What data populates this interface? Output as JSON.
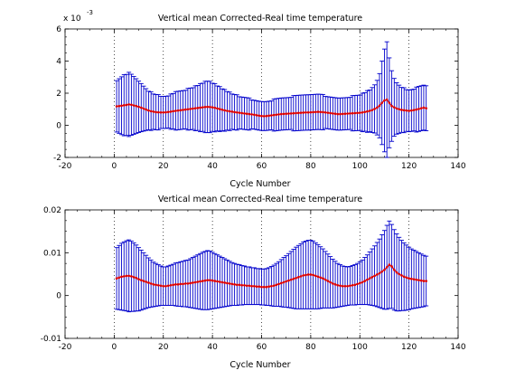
{
  "chart_data": [
    {
      "type": "line",
      "title": "Vertical mean Corrected-Real time temperature",
      "xlabel": "Cycle Number",
      "ylabel": "",
      "xlim": [
        -20,
        140
      ],
      "ylim": [
        -0.002,
        0.006
      ],
      "x_ticks": [
        -20,
        0,
        20,
        40,
        60,
        80,
        100,
        120,
        140
      ],
      "y_ticks": [
        -2,
        0,
        2,
        4,
        6
      ],
      "y_multiplier": "x 10",
      "y_multiplier_exp": "-3",
      "grid": "x-dotted",
      "series": [
        {
          "style": "errorbar",
          "color": "#0000cc",
          "mean_color": "#dd0000",
          "x": [
            1,
            2,
            3,
            4,
            5,
            6,
            7,
            8,
            9,
            10,
            11,
            12,
            13,
            14,
            15,
            16,
            17,
            18,
            19,
            20,
            21,
            22,
            23,
            24,
            25,
            26,
            27,
            28,
            29,
            30,
            31,
            32,
            33,
            34,
            35,
            36,
            37,
            38,
            39,
            40,
            41,
            42,
            43,
            44,
            45,
            46,
            47,
            48,
            49,
            50,
            51,
            52,
            53,
            54,
            55,
            56,
            57,
            58,
            59,
            60,
            61,
            62,
            63,
            64,
            65,
            66,
            67,
            68,
            69,
            70,
            71,
            72,
            73,
            74,
            75,
            76,
            77,
            78,
            79,
            80,
            81,
            82,
            83,
            84,
            85,
            86,
            87,
            88,
            89,
            90,
            91,
            92,
            93,
            94,
            95,
            96,
            97,
            98,
            99,
            100,
            101,
            102,
            103,
            104,
            105,
            106,
            107,
            108,
            109,
            110,
            111,
            112,
            113,
            114,
            115,
            116,
            117,
            118,
            119,
            120,
            121,
            122,
            123,
            124,
            125,
            126,
            127
          ],
          "mean": [
            0.00118,
            0.0012,
            0.00122,
            0.00125,
            0.00127,
            0.0013,
            0.00128,
            0.00124,
            0.0012,
            0.00115,
            0.0011,
            0.00104,
            0.00098,
            0.00092,
            0.00088,
            0.00085,
            0.00082,
            0.00081,
            0.0008,
            0.0008,
            0.00081,
            0.00083,
            0.00085,
            0.00088,
            0.0009,
            0.00092,
            0.00094,
            0.00096,
            0.00098,
            0.001,
            0.00102,
            0.00104,
            0.00106,
            0.00108,
            0.0011,
            0.00112,
            0.00114,
            0.00115,
            0.00114,
            0.00112,
            0.00109,
            0.00105,
            0.00101,
            0.00097,
            0.00093,
            0.0009,
            0.00087,
            0.00085,
            0.00082,
            0.0008,
            0.00078,
            0.00076,
            0.00074,
            0.00072,
            0.0007,
            0.00068,
            0.00066,
            0.00063,
            0.0006,
            0.00058,
            0.00057,
            0.00058,
            0.0006,
            0.00062,
            0.00064,
            0.00066,
            0.00068,
            0.0007,
            0.00071,
            0.00072,
            0.00073,
            0.00074,
            0.00075,
            0.00076,
            0.00077,
            0.00078,
            0.00079,
            0.0008,
            0.0008,
            0.00081,
            0.00082,
            0.00083,
            0.00084,
            0.00083,
            0.00082,
            0.0008,
            0.00078,
            0.00076,
            0.00074,
            0.00072,
            0.0007,
            0.0007,
            0.00071,
            0.00072,
            0.00073,
            0.00074,
            0.00075,
            0.00076,
            0.00077,
            0.00078,
            0.0008,
            0.00083,
            0.00086,
            0.0009,
            0.00095,
            0.00102,
            0.0011,
            0.00122,
            0.0014,
            0.00155,
            0.0016,
            0.0014,
            0.0012,
            0.00112,
            0.00105,
            0.001,
            0.00096,
            0.00094,
            0.00092,
            0.0009,
            0.00092,
            0.00095,
            0.00098,
            0.00102,
            0.00106,
            0.0011,
            0.00106
          ],
          "spread": [
            0.0016,
            0.0017,
            0.0018,
            0.0019,
            0.0019,
            0.002,
            0.0019,
            0.0018,
            0.0017,
            0.0016,
            0.0015,
            0.0014,
            0.0013,
            0.0012,
            0.0012,
            0.0011,
            0.0011,
            0.0011,
            0.001,
            0.001,
            0.001,
            0.001,
            0.0011,
            0.0011,
            0.0012,
            0.0012,
            0.0012,
            0.0012,
            0.0012,
            0.0013,
            0.0013,
            0.0013,
            0.0014,
            0.0014,
            0.0015,
            0.0015,
            0.0016,
            0.0016,
            0.0016,
            0.0015,
            0.0015,
            0.0014,
            0.0014,
            0.0013,
            0.0013,
            0.0012,
            0.0012,
            0.0011,
            0.0011,
            0.0011,
            0.001,
            0.001,
            0.001,
            0.001,
            0.001,
            0.0009,
            0.0009,
            0.0009,
            0.0009,
            0.0009,
            0.0009,
            0.0009,
            0.0009,
            0.0009,
            0.001,
            0.001,
            0.001,
            0.001,
            0.001,
            0.001,
            0.001,
            0.001,
            0.0011,
            0.0011,
            0.0011,
            0.0011,
            0.0011,
            0.0011,
            0.0011,
            0.0011,
            0.0011,
            0.0011,
            0.0011,
            0.0011,
            0.0011,
            0.001,
            0.001,
            0.001,
            0.001,
            0.001,
            0.001,
            0.001,
            0.001,
            0.001,
            0.001,
            0.001,
            0.0011,
            0.0011,
            0.0011,
            0.0011,
            0.0012,
            0.0012,
            0.0013,
            0.0013,
            0.0014,
            0.0015,
            0.0017,
            0.002,
            0.0026,
            0.0032,
            0.0036,
            0.0028,
            0.0022,
            0.0018,
            0.0016,
            0.0015,
            0.0014,
            0.0014,
            0.0013,
            0.0013,
            0.0013,
            0.0013,
            0.0014,
            0.0014,
            0.0014,
            0.0014,
            0.0014
          ]
        }
      ]
    },
    {
      "type": "line",
      "title": "Vertical mean Corrected-Real time temperature",
      "xlabel": "Cycle Number",
      "ylabel": "",
      "xlim": [
        -20,
        140
      ],
      "ylim": [
        -0.01,
        0.02
      ],
      "x_ticks": [
        -20,
        0,
        20,
        40,
        60,
        80,
        100,
        120,
        140
      ],
      "y_ticks": [
        -0.01,
        0,
        0.01,
        0.02
      ],
      "y_tick_labels": [
        "-0.01",
        "0",
        "0.01",
        "0.02"
      ],
      "grid": "x-dotted",
      "series": [
        {
          "style": "errorbar",
          "color": "#0000cc",
          "mean_color": "#dd0000",
          "x": [
            1,
            2,
            3,
            4,
            5,
            6,
            7,
            8,
            9,
            10,
            11,
            12,
            13,
            14,
            15,
            16,
            17,
            18,
            19,
            20,
            21,
            22,
            23,
            24,
            25,
            26,
            27,
            28,
            29,
            30,
            31,
            32,
            33,
            34,
            35,
            36,
            37,
            38,
            39,
            40,
            41,
            42,
            43,
            44,
            45,
            46,
            47,
            48,
            49,
            50,
            51,
            52,
            53,
            54,
            55,
            56,
            57,
            58,
            59,
            60,
            61,
            62,
            63,
            64,
            65,
            66,
            67,
            68,
            69,
            70,
            71,
            72,
            73,
            74,
            75,
            76,
            77,
            78,
            79,
            80,
            81,
            82,
            83,
            84,
            85,
            86,
            87,
            88,
            89,
            90,
            91,
            92,
            93,
            94,
            95,
            96,
            97,
            98,
            99,
            100,
            101,
            102,
            103,
            104,
            105,
            106,
            107,
            108,
            109,
            110,
            111,
            112,
            113,
            114,
            115,
            116,
            117,
            118,
            119,
            120,
            121,
            122,
            123,
            124,
            125,
            126,
            127
          ],
          "mean": [
            0.004,
            0.0042,
            0.0044,
            0.0045,
            0.0046,
            0.0046,
            0.0045,
            0.0043,
            0.0041,
            0.0038,
            0.0036,
            0.0034,
            0.0032,
            0.003,
            0.0028,
            0.0026,
            0.0025,
            0.0024,
            0.0023,
            0.0022,
            0.0022,
            0.0023,
            0.0024,
            0.0025,
            0.0026,
            0.0026,
            0.0027,
            0.0027,
            0.0028,
            0.0028,
            0.0029,
            0.003,
            0.0031,
            0.0032,
            0.0033,
            0.0034,
            0.0035,
            0.0036,
            0.0036,
            0.0035,
            0.0034,
            0.0033,
            0.0032,
            0.0031,
            0.003,
            0.0029,
            0.0028,
            0.0027,
            0.0026,
            0.0025,
            0.0025,
            0.0024,
            0.0024,
            0.0023,
            0.0023,
            0.0022,
            0.0022,
            0.0021,
            0.0021,
            0.002,
            0.002,
            0.002,
            0.0021,
            0.0022,
            0.0023,
            0.0025,
            0.0027,
            0.0029,
            0.0031,
            0.0033,
            0.0035,
            0.0037,
            0.0039,
            0.0041,
            0.0043,
            0.0045,
            0.0047,
            0.0048,
            0.0049,
            0.0049,
            0.0048,
            0.0046,
            0.0044,
            0.0042,
            0.004,
            0.0037,
            0.0034,
            0.0031,
            0.0028,
            0.0026,
            0.0024,
            0.0023,
            0.0022,
            0.0022,
            0.0022,
            0.0023,
            0.0024,
            0.0025,
            0.0027,
            0.0029,
            0.0031,
            0.0034,
            0.0037,
            0.004,
            0.0043,
            0.0046,
            0.0049,
            0.0052,
            0.0056,
            0.006,
            0.0066,
            0.0072,
            0.0068,
            0.006,
            0.0054,
            0.005,
            0.0047,
            0.0044,
            0.0042,
            0.004,
            0.0039,
            0.0038,
            0.0037,
            0.0036,
            0.0035,
            0.0034,
            0.0034
          ],
          "spread": [
            0.0072,
            0.0075,
            0.0078,
            0.008,
            0.0082,
            0.0084,
            0.0082,
            0.008,
            0.0077,
            0.0074,
            0.007,
            0.0066,
            0.0062,
            0.0058,
            0.0055,
            0.0052,
            0.005,
            0.0048,
            0.0046,
            0.0045,
            0.0045,
            0.0046,
            0.0047,
            0.0048,
            0.005,
            0.0051,
            0.0052,
            0.0053,
            0.0054,
            0.0055,
            0.0057,
            0.0059,
            0.0061,
            0.0063,
            0.0065,
            0.0067,
            0.0068,
            0.0069,
            0.0068,
            0.0066,
            0.0064,
            0.0062,
            0.006,
            0.0058,
            0.0056,
            0.0054,
            0.0052,
            0.005,
            0.0049,
            0.0048,
            0.0047,
            0.0046,
            0.0045,
            0.0044,
            0.0044,
            0.0043,
            0.0043,
            0.0042,
            0.0042,
            0.0042,
            0.0042,
            0.0043,
            0.0044,
            0.0046,
            0.0048,
            0.005,
            0.0052,
            0.0055,
            0.0058,
            0.006,
            0.0063,
            0.0066,
            0.0069,
            0.0072,
            0.0074,
            0.0076,
            0.0078,
            0.0079,
            0.008,
            0.008,
            0.0079,
            0.0077,
            0.0075,
            0.0072,
            0.0069,
            0.0066,
            0.0063,
            0.006,
            0.0057,
            0.0054,
            0.0051,
            0.0049,
            0.0047,
            0.0046,
            0.0045,
            0.0045,
            0.0046,
            0.0047,
            0.0048,
            0.005,
            0.0052,
            0.0055,
            0.0058,
            0.0062,
            0.0066,
            0.007,
            0.0075,
            0.008,
            0.0086,
            0.0092,
            0.0098,
            0.0102,
            0.0098,
            0.0094,
            0.009,
            0.0086,
            0.0082,
            0.0079,
            0.0076,
            0.0073,
            0.007,
            0.0068,
            0.0066,
            0.0064,
            0.0062,
            0.006,
            0.0058
          ]
        }
      ]
    }
  ]
}
